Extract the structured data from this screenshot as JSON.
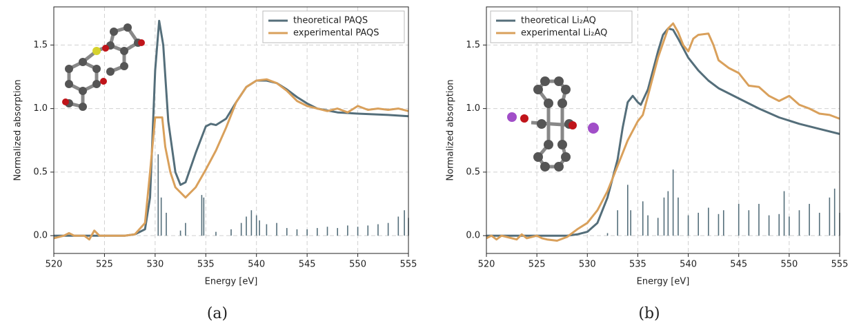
{
  "chart_data": [
    {
      "type": "line",
      "caption": "(a)",
      "x_label": "Energy [eV]",
      "y_label": "Normalized absorption",
      "xlim": [
        520,
        555
      ],
      "xticks": [
        520,
        525,
        530,
        535,
        540,
        545,
        550,
        555
      ],
      "ylim": [
        -0.14,
        1.8
      ],
      "yticks": [
        {
          "value": 0,
          "label": "0.0"
        },
        {
          "value": 0.5,
          "label": "0.5"
        },
        {
          "value": 1,
          "label": "1.0"
        },
        {
          "value": 1.5,
          "label": "1.5"
        }
      ],
      "grid": true,
      "legend": "upper right",
      "series": [
        {
          "name": "theoretical PAQS",
          "color": "#546e7a",
          "x": [
            520,
            527,
            528,
            529,
            529.5,
            530,
            530.4,
            530.8,
            531.3,
            532,
            532.5,
            533,
            534,
            535,
            535.5,
            536,
            537,
            538,
            539,
            540,
            541,
            542,
            543,
            544,
            545,
            546,
            548,
            550,
            553,
            555
          ],
          "values": [
            0,
            0,
            0.01,
            0.05,
            0.3,
            1.3,
            1.69,
            1.5,
            0.9,
            0.5,
            0.4,
            0.42,
            0.65,
            0.86,
            0.88,
            0.87,
            0.92,
            1.05,
            1.17,
            1.22,
            1.22,
            1.2,
            1.15,
            1.09,
            1.04,
            1.0,
            0.97,
            0.96,
            0.95,
            0.94
          ]
        },
        {
          "name": "experimental PAQS",
          "color": "#d9a05b",
          "x": [
            520,
            521,
            521.5,
            522,
            523,
            523.5,
            524,
            524.5,
            525,
            527,
            528,
            529,
            529.5,
            530,
            530.7,
            531,
            531.5,
            532,
            533,
            534,
            535,
            536,
            537,
            538,
            539,
            540,
            541,
            542,
            543,
            544,
            545,
            546,
            547,
            548,
            549,
            550,
            551,
            552,
            553,
            554,
            555
          ],
          "values": [
            -0.02,
            0,
            0.02,
            0,
            0,
            -0.03,
            0.04,
            0,
            0,
            0,
            0.01,
            0.1,
            0.5,
            0.93,
            0.93,
            0.7,
            0.5,
            0.38,
            0.3,
            0.38,
            0.52,
            0.67,
            0.85,
            1.05,
            1.17,
            1.22,
            1.23,
            1.2,
            1.14,
            1.06,
            1.02,
            1.0,
            0.98,
            1.0,
            0.97,
            1.02,
            0.99,
            1.0,
            0.99,
            1.0,
            0.98
          ]
        }
      ],
      "sticks": {
        "color": "#546e7a",
        "x": [
          530.3,
          530.6,
          531.1,
          532.5,
          533,
          534.6,
          534.8,
          536,
          537.5,
          538.5,
          539,
          539.5,
          540,
          540.3,
          541,
          542,
          543,
          544,
          545,
          546,
          547,
          548,
          549,
          550,
          551,
          552,
          553,
          554,
          554.6,
          555
        ],
        "values": [
          0.64,
          0.3,
          0.18,
          0.04,
          0.1,
          0.32,
          0.3,
          0.03,
          0.05,
          0.1,
          0.15,
          0.2,
          0.16,
          0.12,
          0.09,
          0.1,
          0.06,
          0.05,
          0.05,
          0.06,
          0.07,
          0.06,
          0.08,
          0.07,
          0.08,
          0.09,
          0.1,
          0.15,
          0.2,
          0.14
        ]
      }
    },
    {
      "type": "line",
      "caption": "(b)",
      "x_label": "Energy [eV]",
      "y_label": "Normalized absorption",
      "xlim": [
        520,
        555
      ],
      "xticks": [
        520,
        525,
        530,
        535,
        540,
        545,
        550,
        555
      ],
      "ylim": [
        -0.14,
        1.8
      ],
      "yticks": [
        {
          "value": 0,
          "label": "0.0"
        },
        {
          "value": 0.5,
          "label": "0.5"
        },
        {
          "value": 1,
          "label": "1.0"
        },
        {
          "value": 1.5,
          "label": "1.5"
        }
      ],
      "grid": true,
      "legend": "upper left",
      "series": [
        {
          "name": "theoretical Li₂AQ",
          "color": "#546e7a",
          "x": [
            520,
            528,
            529,
            530,
            531,
            532,
            533,
            533.5,
            534,
            534.5,
            535,
            535.3,
            536,
            537,
            537.5,
            538,
            538.5,
            539,
            540,
            541,
            542,
            543,
            545,
            547,
            549,
            551,
            553,
            555
          ],
          "values": [
            0,
            0,
            0.01,
            0.03,
            0.1,
            0.3,
            0.6,
            0.85,
            1.05,
            1.1,
            1.05,
            1.03,
            1.15,
            1.45,
            1.58,
            1.63,
            1.62,
            1.55,
            1.4,
            1.3,
            1.22,
            1.16,
            1.08,
            1.0,
            0.93,
            0.88,
            0.84,
            0.8
          ]
        },
        {
          "name": "experimental Li₂AQ",
          "color": "#d9a05b",
          "x": [
            520,
            520.5,
            521,
            521.5,
            522,
            523,
            523.5,
            524,
            525,
            525.5,
            526,
            527,
            528,
            529,
            530,
            531,
            532,
            533,
            534,
            535,
            535.5,
            536,
            537,
            538,
            538.5,
            539,
            539.5,
            540,
            540.5,
            541,
            542,
            542.5,
            543,
            544,
            545,
            546,
            547,
            548,
            549,
            550,
            551,
            552,
            553,
            554,
            555
          ],
          "values": [
            -0.02,
            0,
            -0.03,
            0,
            -0.01,
            -0.03,
            0.01,
            -0.02,
            0,
            -0.02,
            -0.03,
            -0.04,
            -0.01,
            0.05,
            0.1,
            0.2,
            0.35,
            0.55,
            0.75,
            0.9,
            0.95,
            1.1,
            1.4,
            1.63,
            1.67,
            1.6,
            1.5,
            1.45,
            1.55,
            1.58,
            1.59,
            1.5,
            1.38,
            1.32,
            1.28,
            1.18,
            1.17,
            1.1,
            1.06,
            1.1,
            1.03,
            1.0,
            0.96,
            0.95,
            0.92
          ]
        }
      ],
      "sticks": {
        "color": "#546e7a",
        "x": [
          532,
          533,
          534,
          534.3,
          535.5,
          536,
          537,
          537.6,
          538,
          538.5,
          539,
          540,
          541,
          542,
          543,
          543.5,
          545,
          546,
          547,
          548,
          549,
          549.5,
          550,
          551,
          552,
          553,
          554,
          554.5,
          555
        ],
        "values": [
          0.02,
          0.2,
          0.4,
          0.2,
          0.27,
          0.16,
          0.14,
          0.3,
          0.35,
          0.52,
          0.3,
          0.16,
          0.18,
          0.22,
          0.17,
          0.2,
          0.25,
          0.2,
          0.25,
          0.16,
          0.17,
          0.35,
          0.15,
          0.2,
          0.25,
          0.18,
          0.3,
          0.37,
          0.18
        ]
      }
    }
  ]
}
